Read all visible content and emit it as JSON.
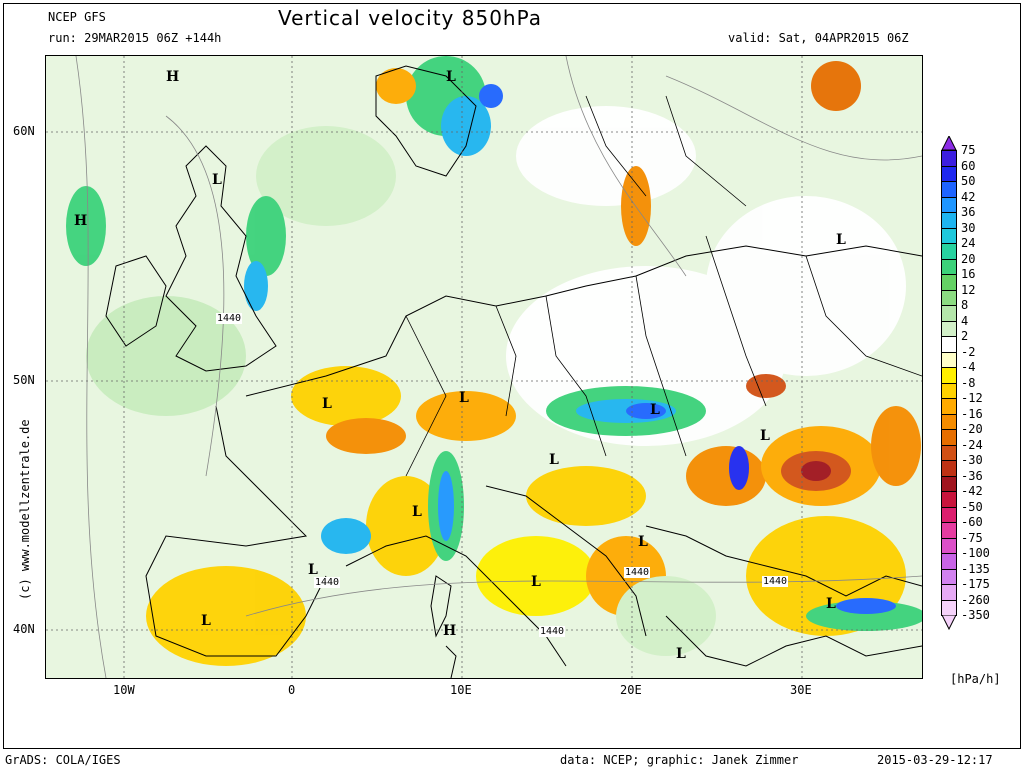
{
  "header": {
    "model": "NCEP GFS",
    "run": "run: 29MAR2015 06Z +144h",
    "title": "Vertical velocity 850hPa",
    "valid": "valid: Sat, 04APR2015 06Z"
  },
  "axes": {
    "lat_labels": [
      "60N",
      "50N",
      "40N"
    ],
    "lon_labels": [
      "10W",
      "0",
      "10E",
      "20E",
      "30E"
    ]
  },
  "map_labels": {
    "pressure_centers": [
      "H",
      "L",
      "L",
      "H",
      "L",
      "L",
      "L",
      "L",
      "L",
      "L",
      "L",
      "L",
      "L",
      "L",
      "L",
      "H",
      "L",
      "L",
      "L"
    ],
    "isohypses": [
      "1440",
      "1440",
      "1440",
      "1440",
      "1440"
    ]
  },
  "colorbar": {
    "unit": "[hPa/h]",
    "levels": [
      "75",
      "60",
      "50",
      "42",
      "36",
      "30",
      "24",
      "20",
      "16",
      "12",
      "8",
      "4",
      "2",
      "-2",
      "-4",
      "-8",
      "-12",
      "-16",
      "-20",
      "-24",
      "-30",
      "-36",
      "-42",
      "-50",
      "-60",
      "-75",
      "-100",
      "-135",
      "-175",
      "-260",
      "-350"
    ],
    "colors": [
      "#3c1ee0",
      "#1e28f0",
      "#1e64ff",
      "#1e96ff",
      "#1eb4f0",
      "#1ec8dc",
      "#28d2a0",
      "#3cd27a",
      "#64d264",
      "#8cdc82",
      "#b4e6aa",
      "#d2f0c8",
      "#ffffff",
      "#ffffc8",
      "#fff000",
      "#ffd200",
      "#ffaa00",
      "#f58c00",
      "#e66e00",
      "#d25014",
      "#be3214",
      "#a0141e",
      "#c8143c",
      "#dc1e6e",
      "#e63ca0",
      "#dc50c8",
      "#c864e6",
      "#d282f0",
      "#e6aaf5",
      "#f5d2fa"
    ]
  },
  "footer": {
    "left": "GrADS: COLA/IGES",
    "right_data": "data: NCEP; graphic: Janek Zimmer",
    "timestamp": "2015-03-29-12:17",
    "copyright": "(c)  www.modellzentrale.de"
  }
}
